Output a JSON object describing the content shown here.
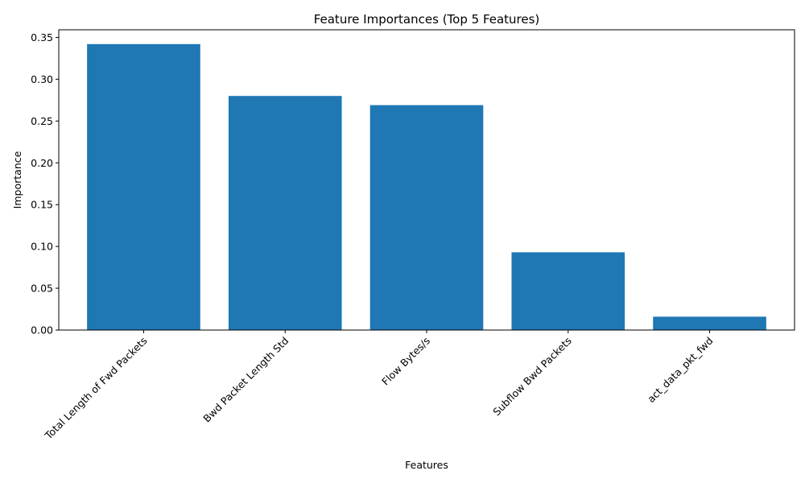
{
  "chart_data": {
    "type": "bar",
    "title": "Feature Importances (Top 5 Features)",
    "xlabel": "Features",
    "ylabel": "Importance",
    "categories": [
      "Total Length of Fwd Packets",
      "Bwd Packet Length Std",
      "Flow Bytes/s",
      "Subflow Bwd Packets",
      "act_data_pkt_fwd"
    ],
    "values": [
      0.342,
      0.28,
      0.269,
      0.093,
      0.016
    ],
    "ylim": [
      0,
      0.35913
    ],
    "yticks": [
      0.0,
      0.05,
      0.1,
      0.15,
      0.2,
      0.25,
      0.3,
      0.35
    ],
    "ytick_labels": [
      "0.00",
      "0.05",
      "0.10",
      "0.15",
      "0.20",
      "0.25",
      "0.30",
      "0.35"
    ],
    "xtick_rotation_deg": 45,
    "grid": false,
    "colors": {
      "bar": "#1f77b4",
      "axes": "#000000"
    }
  }
}
